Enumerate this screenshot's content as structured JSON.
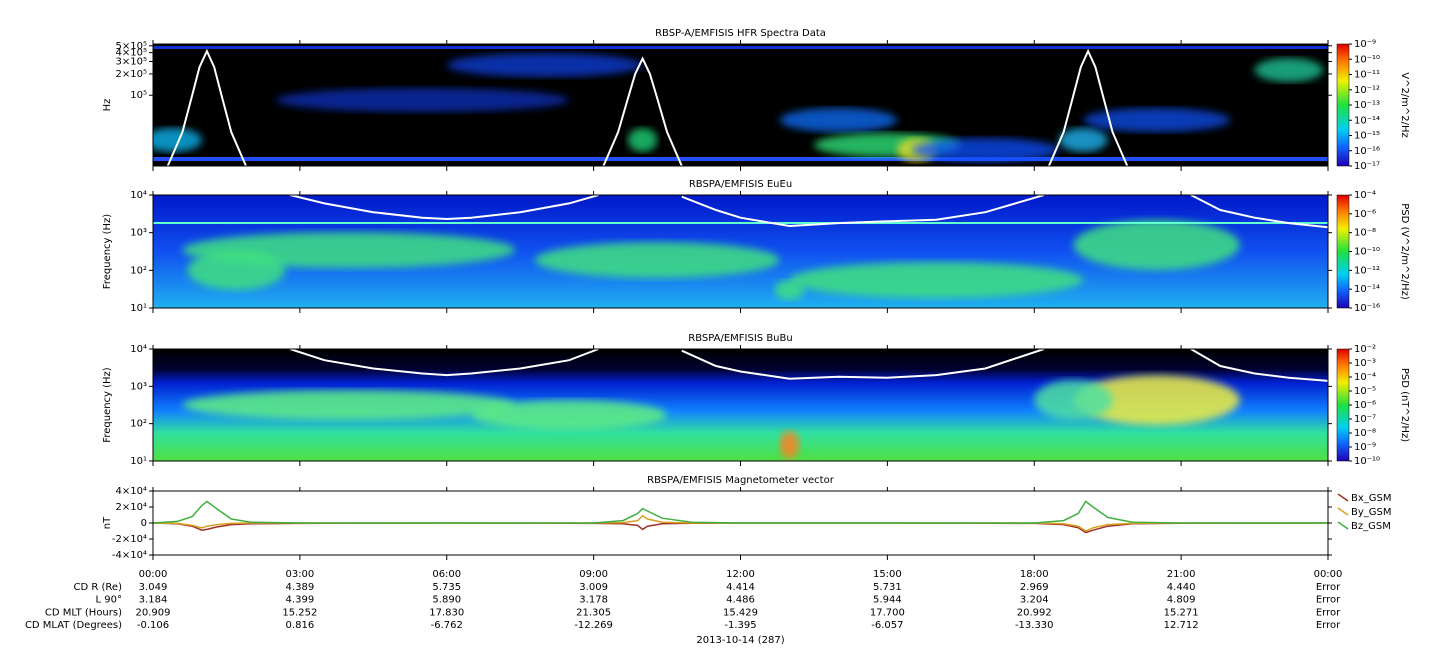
{
  "chart_data": [
    {
      "type": "spectrogram",
      "title": "RBSP-A/EMFISIS  HFR Spectra Data",
      "ylabel": "Hz",
      "ylog": true,
      "xlim": [
        0,
        24
      ],
      "ylim": [
        10000,
        530000
      ],
      "yticks": [
        {
          "value": 500000,
          "label": "5×10⁵"
        },
        {
          "value": 400000,
          "label": "4×10⁵"
        },
        {
          "value": 300000,
          "label": "3×10⁵"
        },
        {
          "value": 200000,
          "label": "2×10⁵"
        },
        {
          "value": 100000,
          "label": "10⁵"
        }
      ],
      "colorbar_label": "V^2/m^2/Hz",
      "clim": [
        1e-17,
        1e-09
      ],
      "cticks": [
        {
          "value": 1e-09,
          "label": "10⁻⁹"
        },
        {
          "value": 1e-10,
          "label": "10⁻¹⁰"
        },
        {
          "value": 1e-11,
          "label": "10⁻¹¹"
        },
        {
          "value": 1e-12,
          "label": "10⁻¹²"
        },
        {
          "value": 1e-13,
          "label": "10⁻¹³"
        },
        {
          "value": 1e-14,
          "label": "10⁻¹⁴"
        },
        {
          "value": 1e-15,
          "label": "10⁻¹⁵"
        },
        {
          "value": 1e-16,
          "label": "10⁻¹⁶"
        },
        {
          "value": 1e-17,
          "label": "10⁻¹⁷"
        }
      ],
      "series": [
        {
          "color": "#ffffff",
          "x": [
            0.3,
            0.6,
            0.8,
            0.95,
            1.1,
            1.25,
            1.4,
            1.6,
            1.9,
            5,
            9.2,
            9.5,
            9.7,
            9.85,
            10.0,
            10.15,
            10.3,
            10.5,
            10.8,
            15,
            18.3,
            18.6,
            18.8,
            18.95,
            19.1,
            19.25,
            19.4,
            19.6,
            19.9
          ],
          "values": [
            10000,
            30000,
            100000,
            250000,
            420000,
            250000,
            100000,
            30000,
            10000,
            null,
            10000,
            30000,
            90000,
            200000,
            330000,
            200000,
            90000,
            30000,
            10000,
            null,
            10000,
            30000,
            100000,
            250000,
            420000,
            250000,
            100000,
            30000,
            10000
          ]
        }
      ]
    },
    {
      "type": "spectrogram",
      "title": "RBSPA/EMFISIS  EuEu",
      "ylabel": "Frequency (Hz)",
      "ylog": true,
      "xlim": [
        0,
        24
      ],
      "ylim": [
        10,
        10000
      ],
      "yticks": [
        {
          "value": 10,
          "label": "10¹"
        },
        {
          "value": 100,
          "label": "10²"
        },
        {
          "value": 1000,
          "label": "10³"
        },
        {
          "value": 10000,
          "label": "10⁴"
        }
      ],
      "colorbar_label": "PSD (V^2/m^2/Hz)",
      "clim": [
        1e-16,
        0.0001
      ],
      "cticks": [
        {
          "value": 0.0001,
          "label": "10⁻⁴"
        },
        {
          "value": 1e-06,
          "label": "10⁻⁶"
        },
        {
          "value": 1e-08,
          "label": "10⁻⁸"
        },
        {
          "value": 1e-10,
          "label": "10⁻¹⁰"
        },
        {
          "value": 1e-12,
          "label": "10⁻¹²"
        },
        {
          "value": 1e-14,
          "label": "10⁻¹⁴"
        },
        {
          "value": 1e-16,
          "label": "10⁻¹⁶"
        }
      ],
      "series": [
        {
          "color": "#ffffff",
          "x": [
            2.8,
            3.5,
            4.5,
            5.5,
            6,
            6.5,
            7.5,
            8.5,
            9.1,
            10,
            10.8,
            11.5,
            12,
            13,
            14,
            15,
            16,
            17,
            18.2,
            20,
            21.2,
            21.8,
            22.5,
            23.2,
            24
          ],
          "values": [
            10000,
            6000,
            3500,
            2500,
            2300,
            2500,
            3500,
            6000,
            10000,
            null,
            9000,
            4000,
            2500,
            1500,
            1800,
            2000,
            2200,
            3500,
            10000,
            null,
            10000,
            4000,
            2500,
            1800,
            1400
          ]
        }
      ]
    },
    {
      "type": "spectrogram",
      "title": "RBSPA/EMFISIS  BuBu",
      "ylabel": "Frequency (Hz)",
      "ylog": true,
      "xlim": [
        0,
        24
      ],
      "ylim": [
        10,
        10000
      ],
      "yticks": [
        {
          "value": 10,
          "label": "10¹"
        },
        {
          "value": 100,
          "label": "10²"
        },
        {
          "value": 1000,
          "label": "10³"
        },
        {
          "value": 10000,
          "label": "10⁴"
        }
      ],
      "colorbar_label": "PSD (nT^2/Hz)",
      "clim": [
        1e-10,
        0.01
      ],
      "cticks": [
        {
          "value": 0.01,
          "label": "10⁻²"
        },
        {
          "value": 0.001,
          "label": "10⁻³"
        },
        {
          "value": 0.0001,
          "label": "10⁻⁴"
        },
        {
          "value": 1e-05,
          "label": "10⁻⁵"
        },
        {
          "value": 1e-06,
          "label": "10⁻⁶"
        },
        {
          "value": 1e-07,
          "label": "10⁻⁷"
        },
        {
          "value": 1e-08,
          "label": "10⁻⁸"
        },
        {
          "value": 1e-09,
          "label": "10⁻⁹"
        },
        {
          "value": 1e-10,
          "label": "10⁻¹⁰"
        }
      ],
      "series": [
        {
          "color": "#ffffff",
          "x": [
            2.8,
            3.5,
            4.5,
            5.5,
            6,
            6.5,
            7.5,
            8.5,
            9.1,
            10,
            10.8,
            11.5,
            12,
            13,
            14,
            15,
            16,
            17,
            18.2,
            20,
            21.2,
            21.8,
            22.5,
            23.2,
            24
          ],
          "values": [
            10000,
            5000,
            3000,
            2200,
            2000,
            2200,
            3000,
            5000,
            10000,
            null,
            9000,
            3500,
            2500,
            1600,
            1800,
            1700,
            2000,
            3000,
            10000,
            null,
            10000,
            3500,
            2200,
            1700,
            1400
          ]
        }
      ]
    },
    {
      "type": "line",
      "title": "RBSPA/EMFISIS  Magnetometer vector",
      "ylabel": "nT",
      "ylog": false,
      "xlim": [
        0,
        24
      ],
      "ylim": [
        -40000,
        40000
      ],
      "yticks": [
        {
          "value": 40000,
          "label": "4×10⁴"
        },
        {
          "value": 20000,
          "label": "2×10⁴"
        },
        0,
        {
          "value": -20000,
          "label": "-2×10⁴"
        },
        {
          "value": -40000,
          "label": "-4×10⁴"
        }
      ],
      "xticks": [
        {
          "value": 0,
          "label": "00:00"
        },
        {
          "value": 3,
          "label": "03:00"
        },
        {
          "value": 6,
          "label": "06:00"
        },
        {
          "value": 9,
          "label": "09:00"
        },
        {
          "value": 12,
          "label": "12:00"
        },
        {
          "value": 15,
          "label": "15:00"
        },
        {
          "value": 18,
          "label": "18:00"
        },
        {
          "value": 21,
          "label": "21:00"
        },
        {
          "value": 24,
          "label": "00:00"
        }
      ],
      "x": [
        0,
        0.5,
        0.8,
        1.0,
        1.1,
        1.3,
        1.6,
        2,
        3,
        6,
        9,
        9.6,
        9.9,
        10.0,
        10.1,
        10.4,
        11,
        12,
        15,
        18,
        18.6,
        18.9,
        19.05,
        19.2,
        19.5,
        20,
        21,
        24
      ],
      "series": [
        {
          "name": "Bx_GSM",
          "color": "#a0302a",
          "values": [
            0,
            -1000,
            -4000,
            -9000,
            -8000,
            -5000,
            -2000,
            -1000,
            -500,
            0,
            -500,
            -1000,
            -3000,
            -8000,
            -4000,
            -1000,
            -300,
            0,
            0,
            -500,
            -2000,
            -6000,
            -12000,
            -9000,
            -4000,
            -1000,
            -200,
            0
          ]
        },
        {
          "name": "By_GSM",
          "color": "#d8a020",
          "values": [
            0,
            -500,
            -3000,
            -6000,
            -4000,
            -2000,
            -500,
            0,
            0,
            0,
            0,
            500,
            3000,
            9000,
            5000,
            1000,
            0,
            0,
            0,
            0,
            -1000,
            -4000,
            -10000,
            -6000,
            -2000,
            -500,
            0,
            0
          ]
        },
        {
          "name": "Bz_GSM",
          "color": "#40b040",
          "values": [
            0,
            2000,
            8000,
            22000,
            27000,
            18000,
            5000,
            1000,
            0,
            0,
            0,
            3000,
            12000,
            18000,
            15000,
            6000,
            1000,
            0,
            0,
            0,
            3000,
            12000,
            27000,
            20000,
            7000,
            1000,
            0,
            0
          ]
        }
      ]
    }
  ],
  "ephemeris": {
    "rows": [
      {
        "label": "CD R (Re)",
        "values": [
          "3.049",
          "4.389",
          "5.735",
          "3.009",
          "4.414",
          "5.731",
          "2.969",
          "4.440",
          "Error"
        ]
      },
      {
        "label": "L 90°",
        "values": [
          "3.184",
          "4.399",
          "5.890",
          "3.178",
          "4.486",
          "5.944",
          "3.204",
          "4.809",
          "Error"
        ]
      },
      {
        "label": "CD MLT (Hours)",
        "values": [
          "20.909",
          "15.252",
          "17.830",
          "21.305",
          "15.429",
          "17.700",
          "20.992",
          "15.271",
          "Error"
        ]
      },
      {
        "label": "CD MLAT (Degrees)",
        "values": [
          "-0.106",
          "0.816",
          "-6.762",
          "-12.269",
          "-1.395",
          "-6.057",
          "-13.330",
          "12.712",
          "Error"
        ]
      }
    ],
    "date": "2013-10-14 (287)"
  }
}
